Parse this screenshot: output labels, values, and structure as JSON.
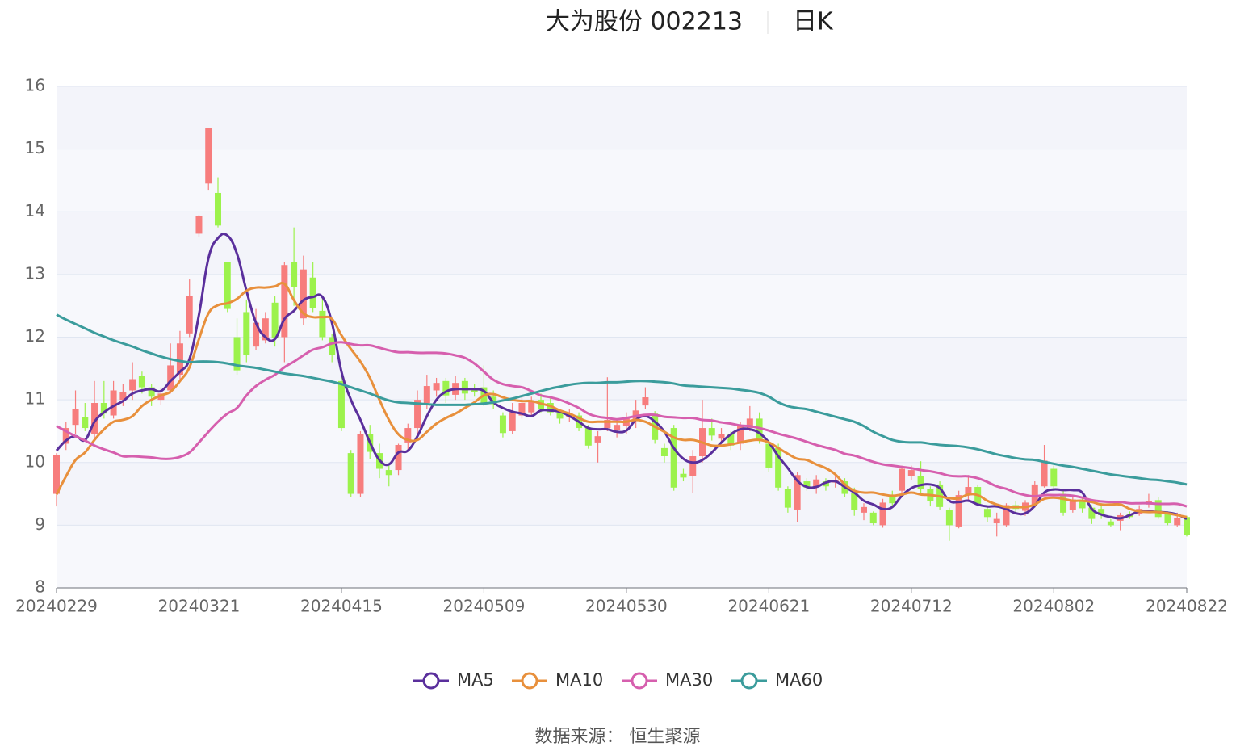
{
  "chart_data": {
    "type": "candlestick",
    "title": "大为股份 002213",
    "subtitle": "日K",
    "source": "数据来源： 恒生聚源",
    "categories": [
      "20240229",
      null,
      null,
      null,
      null,
      null,
      null,
      null,
      null,
      null,
      null,
      null,
      null,
      null,
      null,
      "20240321",
      null,
      null,
      null,
      null,
      null,
      null,
      null,
      null,
      null,
      null,
      null,
      null,
      null,
      null,
      "20240415",
      null,
      null,
      null,
      null,
      null,
      null,
      null,
      null,
      null,
      null,
      null,
      null,
      null,
      null,
      "20240509",
      null,
      null,
      null,
      null,
      null,
      null,
      null,
      null,
      null,
      null,
      null,
      null,
      null,
      null,
      "20240530",
      null,
      null,
      null,
      null,
      null,
      null,
      null,
      null,
      null,
      null,
      null,
      null,
      null,
      null,
      "20240621",
      null,
      null,
      null,
      null,
      null,
      null,
      null,
      null,
      null,
      null,
      null,
      null,
      null,
      null,
      "20240712",
      null,
      null,
      null,
      null,
      null,
      null,
      null,
      null,
      null,
      null,
      null,
      null,
      null,
      null,
      "20240802",
      null,
      null,
      null,
      null,
      null,
      null,
      null,
      null,
      null,
      null,
      null,
      null,
      null,
      "20240822"
    ],
    "open": [
      9.5,
      10.3,
      10.6,
      10.72,
      10.45,
      10.95,
      10.75,
      11.0,
      11.15,
      11.38,
      11.2,
      11.0,
      11.15,
      11.4,
      12.06,
      13.65,
      14.45,
      14.3,
      13.2,
      12.0,
      12.4,
      11.85,
      11.95,
      12.55,
      12.0,
      13.2,
      12.3,
      12.95,
      12.42,
      12.0,
      11.3,
      10.15,
      9.5,
      10.45,
      10.15,
      9.88,
      9.88,
      10.32,
      10.55,
      10.95,
      11.15,
      11.3,
      11.08,
      11.3,
      11.18,
      11.2,
      11.05,
      10.75,
      10.5,
      10.75,
      10.8,
      11.0,
      10.95,
      10.8,
      10.72,
      10.75,
      10.55,
      10.32,
      10.55,
      10.52,
      10.58,
      10.68,
      10.91,
      10.78,
      10.23,
      10.55,
      9.82,
      9.78,
      10.1,
      10.55,
      10.38,
      10.45,
      10.3,
      10.55,
      10.7,
      10.3,
      10.23,
      9.58,
      9.25,
      9.7,
      9.6,
      9.7,
      9.68,
      9.7,
      9.52,
      9.2,
      9.2,
      9.0,
      9.48,
      9.55,
      9.78,
      9.78,
      9.58,
      9.65,
      9.24,
      8.98,
      9.48,
      9.61,
      9.26,
      9.03,
      9.0,
      9.32,
      9.23,
      9.33,
      9.62,
      9.9,
      9.5,
      9.24,
      9.4,
      9.28,
      9.26,
      9.06,
      9.07,
      9.18,
      9.18,
      9.33,
      9.4,
      9.18,
      9.0,
      9.13
    ],
    "close": [
      10.12,
      10.55,
      10.85,
      10.55,
      10.95,
      10.78,
      11.15,
      11.12,
      11.33,
      11.2,
      11.05,
      11.1,
      11.55,
      11.9,
      12.66,
      13.93,
      15.33,
      13.78,
      12.45,
      11.47,
      11.72,
      12.23,
      12.3,
      11.98,
      13.15,
      12.8,
      13.08,
      12.46,
      12.0,
      11.72,
      10.55,
      9.5,
      10.46,
      10.17,
      9.9,
      9.8,
      10.28,
      10.55,
      11.0,
      11.22,
      11.27,
      11.07,
      11.27,
      11.1,
      11.12,
      10.95,
      10.93,
      10.47,
      10.8,
      10.95,
      10.98,
      10.85,
      10.8,
      10.7,
      10.78,
      10.55,
      10.27,
      10.42,
      10.68,
      10.6,
      10.7,
      10.83,
      11.04,
      10.36,
      10.1,
      9.6,
      9.76,
      10.1,
      10.55,
      10.43,
      10.45,
      10.27,
      10.58,
      10.7,
      10.36,
      9.92,
      9.6,
      9.28,
      9.8,
      9.6,
      9.73,
      9.62,
      9.72,
      9.5,
      9.24,
      9.29,
      9.03,
      9.36,
      9.35,
      9.9,
      9.88,
      9.58,
      9.38,
      9.29,
      9.0,
      9.48,
      9.61,
      9.33,
      9.13,
      9.1,
      9.32,
      9.26,
      9.36,
      9.65,
      10.03,
      9.62,
      9.2,
      9.41,
      9.27,
      9.1,
      9.16,
      9.0,
      9.16,
      9.13,
      9.26,
      9.39,
      9.13,
      9.03,
      9.12,
      8.85
    ],
    "low": [
      9.3,
      10.2,
      10.45,
      10.5,
      10.35,
      10.7,
      10.7,
      10.9,
      11.0,
      11.1,
      10.9,
      10.92,
      11.1,
      11.3,
      12.0,
      13.6,
      14.35,
      13.75,
      12.4,
      11.4,
      11.6,
      11.8,
      11.9,
      11.85,
      11.6,
      12.5,
      12.2,
      12.4,
      11.95,
      11.6,
      10.5,
      9.45,
      9.45,
      10.05,
      9.75,
      9.62,
      9.8,
      10.2,
      10.45,
      10.85,
      11.05,
      10.95,
      11.0,
      11.0,
      11.05,
      10.9,
      10.85,
      10.4,
      10.45,
      10.7,
      10.75,
      10.8,
      10.75,
      10.62,
      10.65,
      10.5,
      10.22,
      10.0,
      10.5,
      10.4,
      10.45,
      10.55,
      10.85,
      10.3,
      10.0,
      9.55,
      9.7,
      9.52,
      10.0,
      10.35,
      10.3,
      10.2,
      10.2,
      10.5,
      10.3,
      9.85,
      9.55,
      9.2,
      9.05,
      9.55,
      9.5,
      9.55,
      9.6,
      9.45,
      9.15,
      9.08,
      9.0,
      8.96,
      9.3,
      9.5,
      9.72,
      9.52,
      9.3,
      9.25,
      8.75,
      8.95,
      9.4,
      9.3,
      9.05,
      8.82,
      8.98,
      9.2,
      9.15,
      9.28,
      9.6,
      9.55,
      9.15,
      9.2,
      9.2,
      9.02,
      9.1,
      8.98,
      8.92,
      9.1,
      9.15,
      9.28,
      9.1,
      9.0,
      8.98,
      8.82
    ],
    "high": [
      10.15,
      10.65,
      11.15,
      10.95,
      11.3,
      11.3,
      11.3,
      11.25,
      11.6,
      11.45,
      11.25,
      11.2,
      11.9,
      12.1,
      12.92,
      13.95,
      15.33,
      14.55,
      13.2,
      12.3,
      12.6,
      12.45,
      12.4,
      12.65,
      13.2,
      13.75,
      13.3,
      13.2,
      12.65,
      12.05,
      11.45,
      10.2,
      10.5,
      10.6,
      10.3,
      9.95,
      10.3,
      10.62,
      11.15,
      11.4,
      11.35,
      11.35,
      11.38,
      11.35,
      11.25,
      11.55,
      11.15,
      10.8,
      10.95,
      11.05,
      11.05,
      11.1,
      11.05,
      10.85,
      10.85,
      10.8,
      10.6,
      10.5,
      11.36,
      10.7,
      10.8,
      11.0,
      11.2,
      10.82,
      10.3,
      10.6,
      9.9,
      10.2,
      11.0,
      10.7,
      10.55,
      10.5,
      10.65,
      10.9,
      10.8,
      10.35,
      10.3,
      9.62,
      9.85,
      9.75,
      9.8,
      9.75,
      9.8,
      9.75,
      9.6,
      9.35,
      9.22,
      9.42,
      9.55,
      9.95,
      9.95,
      10.02,
      9.62,
      9.7,
      9.28,
      9.55,
      9.8,
      9.65,
      9.3,
      9.2,
      9.35,
      9.38,
      9.4,
      9.7,
      10.28,
      9.95,
      9.55,
      9.48,
      9.45,
      9.32,
      9.35,
      9.1,
      9.2,
      9.22,
      9.32,
      9.5,
      9.45,
      9.22,
      9.2,
      9.15
    ],
    "up_color": "#f77d7d",
    "down_color": "#9cf24c",
    "series": [
      {
        "name": "MA5",
        "color": "#5a2f9c",
        "values": [
          10.19,
          10.35,
          10.42,
          10.36,
          10.65,
          10.8,
          10.9,
          10.98,
          11.1,
          11.15,
          11.17,
          11.14,
          11.3,
          11.45,
          11.65,
          12.36,
          13.26,
          13.58,
          13.62,
          13.33,
          12.74,
          12.23,
          12.0,
          11.97,
          12.29,
          12.42,
          12.59,
          12.64,
          12.64,
          12.23,
          11.45,
          11.0,
          10.68,
          10.32,
          10.04,
          9.97,
          10.16,
          10.19,
          10.42,
          10.74,
          11.0,
          11.13,
          11.17,
          11.17,
          11.17,
          11.14,
          10.96,
          10.87,
          10.81,
          10.78,
          10.74,
          10.83,
          10.83,
          10.81,
          10.74,
          10.65,
          10.55,
          10.53,
          10.53,
          10.49,
          10.51,
          10.68,
          10.74,
          10.65,
          10.49,
          10.23,
          10.06,
          10.0,
          10.04,
          10.16,
          10.32,
          10.45,
          10.53,
          10.53,
          10.47,
          10.32,
          10.1,
          9.91,
          9.71,
          9.61,
          9.61,
          9.68,
          9.7,
          9.61,
          9.52,
          9.39,
          9.33,
          9.26,
          9.29,
          9.47,
          9.59,
          9.64,
          9.65,
          9.59,
          9.39,
          9.37,
          9.39,
          9.33,
          9.3,
          9.3,
          9.26,
          9.19,
          9.19,
          9.31,
          9.52,
          9.57,
          9.56,
          9.56,
          9.52,
          9.26,
          9.17,
          9.13,
          9.11,
          9.16,
          9.22,
          9.22,
          9.21,
          9.2,
          9.17,
          9.1
        ]
      },
      {
        "name": "MA10",
        "color": "#e8903c",
        "values": [
          9.49,
          9.78,
          10.04,
          10.16,
          10.36,
          10.53,
          10.65,
          10.68,
          10.74,
          10.9,
          11.0,
          11.07,
          11.13,
          11.3,
          11.52,
          11.97,
          12.38,
          12.51,
          12.54,
          12.61,
          12.74,
          12.79,
          12.79,
          12.81,
          12.85,
          12.59,
          12.38,
          12.32,
          12.32,
          12.29,
          12.03,
          11.81,
          11.61,
          11.35,
          11.0,
          10.68,
          10.45,
          10.36,
          10.36,
          10.49,
          10.62,
          10.71,
          10.78,
          10.87,
          10.96,
          11.07,
          11.09,
          11.04,
          11.0,
          10.98,
          10.98,
          10.94,
          10.9,
          10.83,
          10.78,
          10.71,
          10.65,
          10.65,
          10.65,
          10.65,
          10.65,
          10.68,
          10.65,
          10.57,
          10.49,
          10.4,
          10.36,
          10.36,
          10.32,
          10.27,
          10.27,
          10.29,
          10.32,
          10.35,
          10.36,
          10.32,
          10.23,
          10.14,
          10.06,
          10.04,
          9.97,
          9.91,
          9.81,
          9.65,
          9.55,
          9.52,
          9.52,
          9.49,
          9.47,
          9.49,
          9.52,
          9.49,
          9.48,
          9.46,
          9.43,
          9.43,
          9.49,
          9.48,
          9.39,
          9.33,
          9.29,
          9.29,
          9.29,
          9.33,
          9.42,
          9.44,
          9.42,
          9.39,
          9.39,
          9.37,
          9.33,
          9.33,
          9.33,
          9.26,
          9.22,
          9.21,
          9.21,
          9.19,
          9.16,
          9.13
        ]
      },
      {
        "name": "MA30",
        "color": "#d65fae",
        "values": [
          10.58,
          10.5,
          10.42,
          10.35,
          10.27,
          10.21,
          10.16,
          10.1,
          10.1,
          10.09,
          10.08,
          10.06,
          10.06,
          10.09,
          10.16,
          10.32,
          10.49,
          10.65,
          10.78,
          10.87,
          11.07,
          11.22,
          11.32,
          11.4,
          11.52,
          11.61,
          11.71,
          11.8,
          11.84,
          11.9,
          11.92,
          11.89,
          11.87,
          11.87,
          11.83,
          11.79,
          11.76,
          11.76,
          11.75,
          11.75,
          11.75,
          11.74,
          11.71,
          11.67,
          11.58,
          11.45,
          11.32,
          11.25,
          11.22,
          11.2,
          11.14,
          11.07,
          11.04,
          11.0,
          10.94,
          10.87,
          10.78,
          10.73,
          10.71,
          10.69,
          10.71,
          10.74,
          10.76,
          10.76,
          10.73,
          10.72,
          10.71,
          10.71,
          10.68,
          10.67,
          10.64,
          10.62,
          10.59,
          10.58,
          10.55,
          10.51,
          10.46,
          10.42,
          10.38,
          10.33,
          10.28,
          10.24,
          10.2,
          10.14,
          10.11,
          10.06,
          10.01,
          9.97,
          9.95,
          9.93,
          9.91,
          9.88,
          9.86,
          9.83,
          9.79,
          9.78,
          9.78,
          9.75,
          9.69,
          9.62,
          9.58,
          9.52,
          9.48,
          9.46,
          9.48,
          9.48,
          9.48,
          9.47,
          9.44,
          9.4,
          9.38,
          9.37,
          9.37,
          9.35,
          9.35,
          9.35,
          9.34,
          9.34,
          9.34,
          9.3
        ]
      },
      {
        "name": "MA60",
        "color": "#3b9c9c",
        "values": [
          12.36,
          12.28,
          12.21,
          12.14,
          12.07,
          12.01,
          11.95,
          11.9,
          11.85,
          11.79,
          11.74,
          11.69,
          11.65,
          11.62,
          11.6,
          11.61,
          11.61,
          11.6,
          11.58,
          11.55,
          11.53,
          11.51,
          11.48,
          11.45,
          11.42,
          11.4,
          11.38,
          11.35,
          11.32,
          11.29,
          11.25,
          11.2,
          11.15,
          11.1,
          11.04,
          10.99,
          10.96,
          10.95,
          10.94,
          10.93,
          10.92,
          10.92,
          10.92,
          10.92,
          10.93,
          10.94,
          10.96,
          10.99,
          11.02,
          11.06,
          11.1,
          11.14,
          11.18,
          11.21,
          11.24,
          11.26,
          11.27,
          11.27,
          11.28,
          11.28,
          11.29,
          11.3,
          11.3,
          11.29,
          11.28,
          11.26,
          11.23,
          11.22,
          11.21,
          11.2,
          11.19,
          11.18,
          11.16,
          11.14,
          11.11,
          11.05,
          10.96,
          10.9,
          10.87,
          10.85,
          10.81,
          10.77,
          10.73,
          10.69,
          10.65,
          10.58,
          10.49,
          10.42,
          10.36,
          10.33,
          10.32,
          10.32,
          10.3,
          10.28,
          10.27,
          10.26,
          10.24,
          10.21,
          10.17,
          10.13,
          10.1,
          10.07,
          10.05,
          10.04,
          10.01,
          9.98,
          9.95,
          9.93,
          9.9,
          9.87,
          9.84,
          9.81,
          9.79,
          9.77,
          9.75,
          9.73,
          9.72,
          9.7,
          9.68,
          9.65
        ]
      }
    ],
    "ylim": [
      8,
      16
    ],
    "yticks": [
      8,
      9,
      10,
      11,
      12,
      13,
      14,
      15,
      16
    ],
    "grid": true
  }
}
